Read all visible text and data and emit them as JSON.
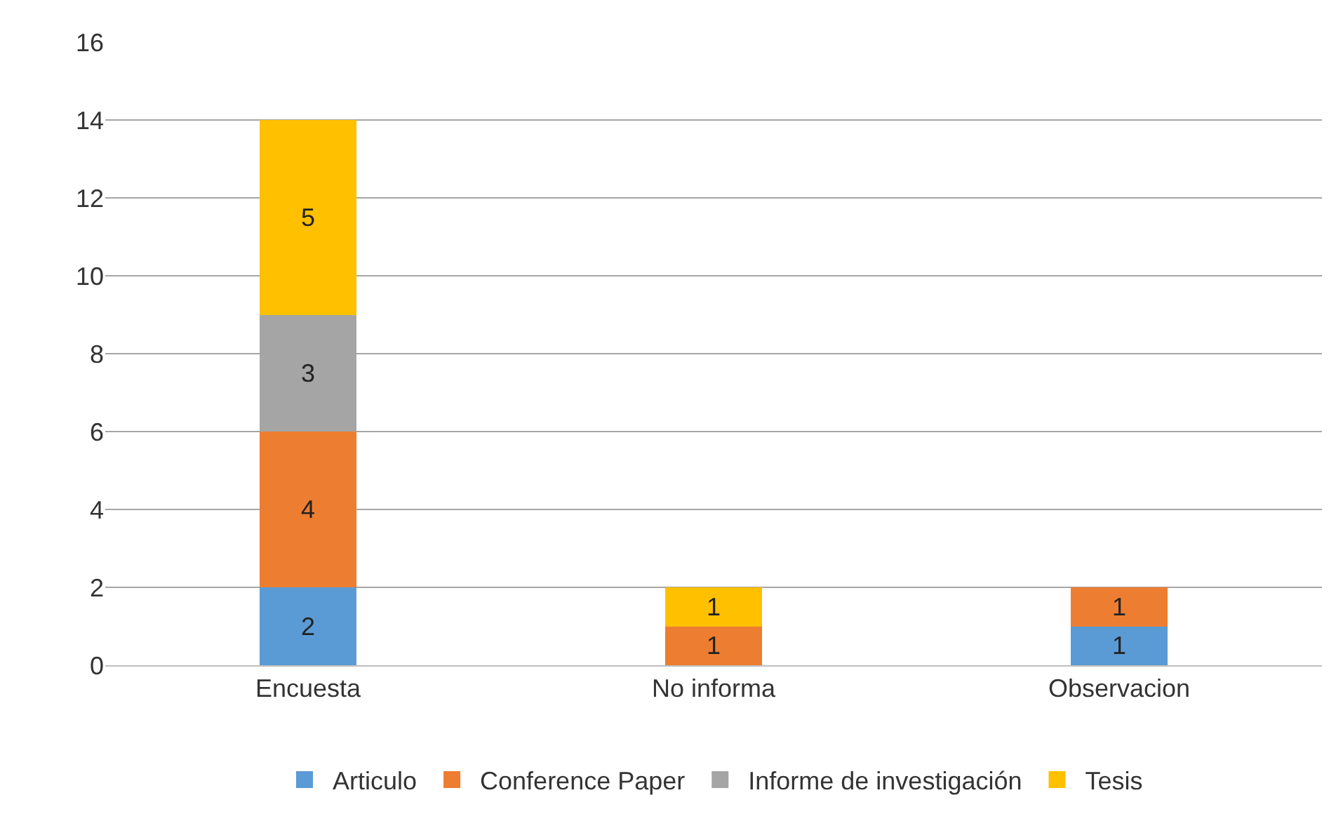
{
  "chart_data": {
    "type": "bar",
    "stacked": true,
    "categories": [
      "Encuesta",
      "No informa",
      "Observacion"
    ],
    "series": [
      {
        "name": "Articulo",
        "color": "#5b9bd5",
        "values": [
          2,
          null,
          1
        ]
      },
      {
        "name": "Conference Paper",
        "color": "#ed7d31",
        "values": [
          4,
          1,
          1
        ]
      },
      {
        "name": "Informe de investigación",
        "color": "#a5a5a5",
        "values": [
          3,
          null,
          null
        ]
      },
      {
        "name": "Tesis",
        "color": "#ffc000",
        "values": [
          5,
          1,
          null
        ]
      }
    ],
    "ylim": [
      0,
      16
    ],
    "yticks": [
      0,
      2,
      4,
      6,
      8,
      10,
      12,
      14,
      16
    ],
    "grid": "y",
    "legend": "bottom",
    "data_labels": true
  }
}
